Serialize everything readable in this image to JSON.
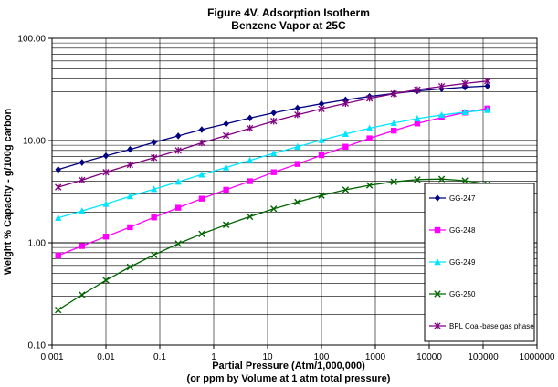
{
  "chart_data": {
    "type": "line",
    "title": "Figure 4V. Adsorption Isotherm",
    "subtitle": "Benzene Vapor at 25C",
    "xlabel": "Partial Pressure (Atm/1,000,000)",
    "xlabel_line2": "(or ppm by Volume at 1 atm total pressure)",
    "ylabel": "Weight % Capacity - g/100g carbon",
    "x_scale": "log",
    "y_scale": "log",
    "xlim": [
      0.001,
      1000000
    ],
    "ylim": [
      0.1,
      100
    ],
    "x_tick_labels": [
      "0.001",
      "0.01",
      "0.1",
      "1",
      "10",
      "100",
      "1000",
      "10000",
      "100000",
      "1000000"
    ],
    "y_tick_labels": [
      "0.10",
      "1.00",
      "10.00",
      "100.00"
    ],
    "grid": "horizontal major and minor, vertical major",
    "legend_position": "right, inside plot",
    "series": [
      {
        "name": "GG-247",
        "color": "#000080",
        "marker": "diamond",
        "x": [
          0.0013,
          0.0036,
          0.01,
          0.028,
          0.078,
          0.22,
          0.6,
          1.7,
          4.7,
          13,
          36,
          100,
          280,
          780,
          2200,
          6000,
          17000,
          46000,
          120000
        ],
        "y": [
          5.2,
          6.1,
          7.1,
          8.2,
          9.6,
          11.1,
          12.8,
          14.6,
          16.6,
          18.7,
          20.8,
          22.9,
          25.0,
          27.0,
          28.9,
          30.6,
          32.1,
          33.3,
          34.2
        ]
      },
      {
        "name": "GG-248",
        "color": "#ff00ff",
        "marker": "square",
        "x": [
          0.0013,
          0.0036,
          0.01,
          0.028,
          0.078,
          0.22,
          0.6,
          1.7,
          4.7,
          13,
          36,
          100,
          280,
          780,
          2200,
          6000,
          17000,
          46000,
          120000
        ],
        "y": [
          0.75,
          0.93,
          1.15,
          1.42,
          1.77,
          2.2,
          2.7,
          3.3,
          4.0,
          4.9,
          5.9,
          7.2,
          8.7,
          10.5,
          12.5,
          14.7,
          16.8,
          18.8,
          20.6
        ]
      },
      {
        "name": "GG-249",
        "color": "#00e5ff",
        "marker": "triangle",
        "x": [
          0.0013,
          0.0036,
          0.01,
          0.028,
          0.078,
          0.22,
          0.6,
          1.7,
          4.7,
          13,
          36,
          100,
          280,
          780,
          2200,
          6000,
          17000,
          46000,
          120000
        ],
        "y": [
          1.75,
          2.05,
          2.4,
          2.85,
          3.35,
          3.95,
          4.65,
          5.45,
          6.4,
          7.5,
          8.7,
          10.1,
          11.6,
          13.2,
          14.8,
          16.4,
          17.8,
          19.0,
          19.9
        ]
      },
      {
        "name": "GG-250",
        "color": "#006400",
        "marker": "x",
        "x": [
          0.0013,
          0.0036,
          0.01,
          0.028,
          0.078,
          0.22,
          0.6,
          1.7,
          4.7,
          13,
          36,
          100,
          280,
          780,
          2200,
          6000,
          17000,
          46000,
          120000
        ],
        "y": [
          0.22,
          0.31,
          0.43,
          0.58,
          0.76,
          0.98,
          1.22,
          1.5,
          1.8,
          2.15,
          2.5,
          2.9,
          3.3,
          3.65,
          3.95,
          4.15,
          4.2,
          4.05,
          3.75
        ]
      },
      {
        "name": "BPL Coal-base gas phase",
        "color": "#800080",
        "marker": "star",
        "x": [
          0.0013,
          0.0036,
          0.01,
          0.028,
          0.078,
          0.22,
          0.6,
          1.7,
          4.7,
          13,
          36,
          100,
          280,
          780,
          2200,
          6000,
          17000,
          46000,
          120000
        ],
        "y": [
          3.5,
          4.1,
          4.9,
          5.8,
          6.8,
          8.0,
          9.5,
          11.2,
          13.2,
          15.5,
          17.9,
          20.4,
          23.1,
          25.9,
          28.7,
          31.4,
          33.9,
          36.2,
          38.2
        ]
      }
    ]
  }
}
